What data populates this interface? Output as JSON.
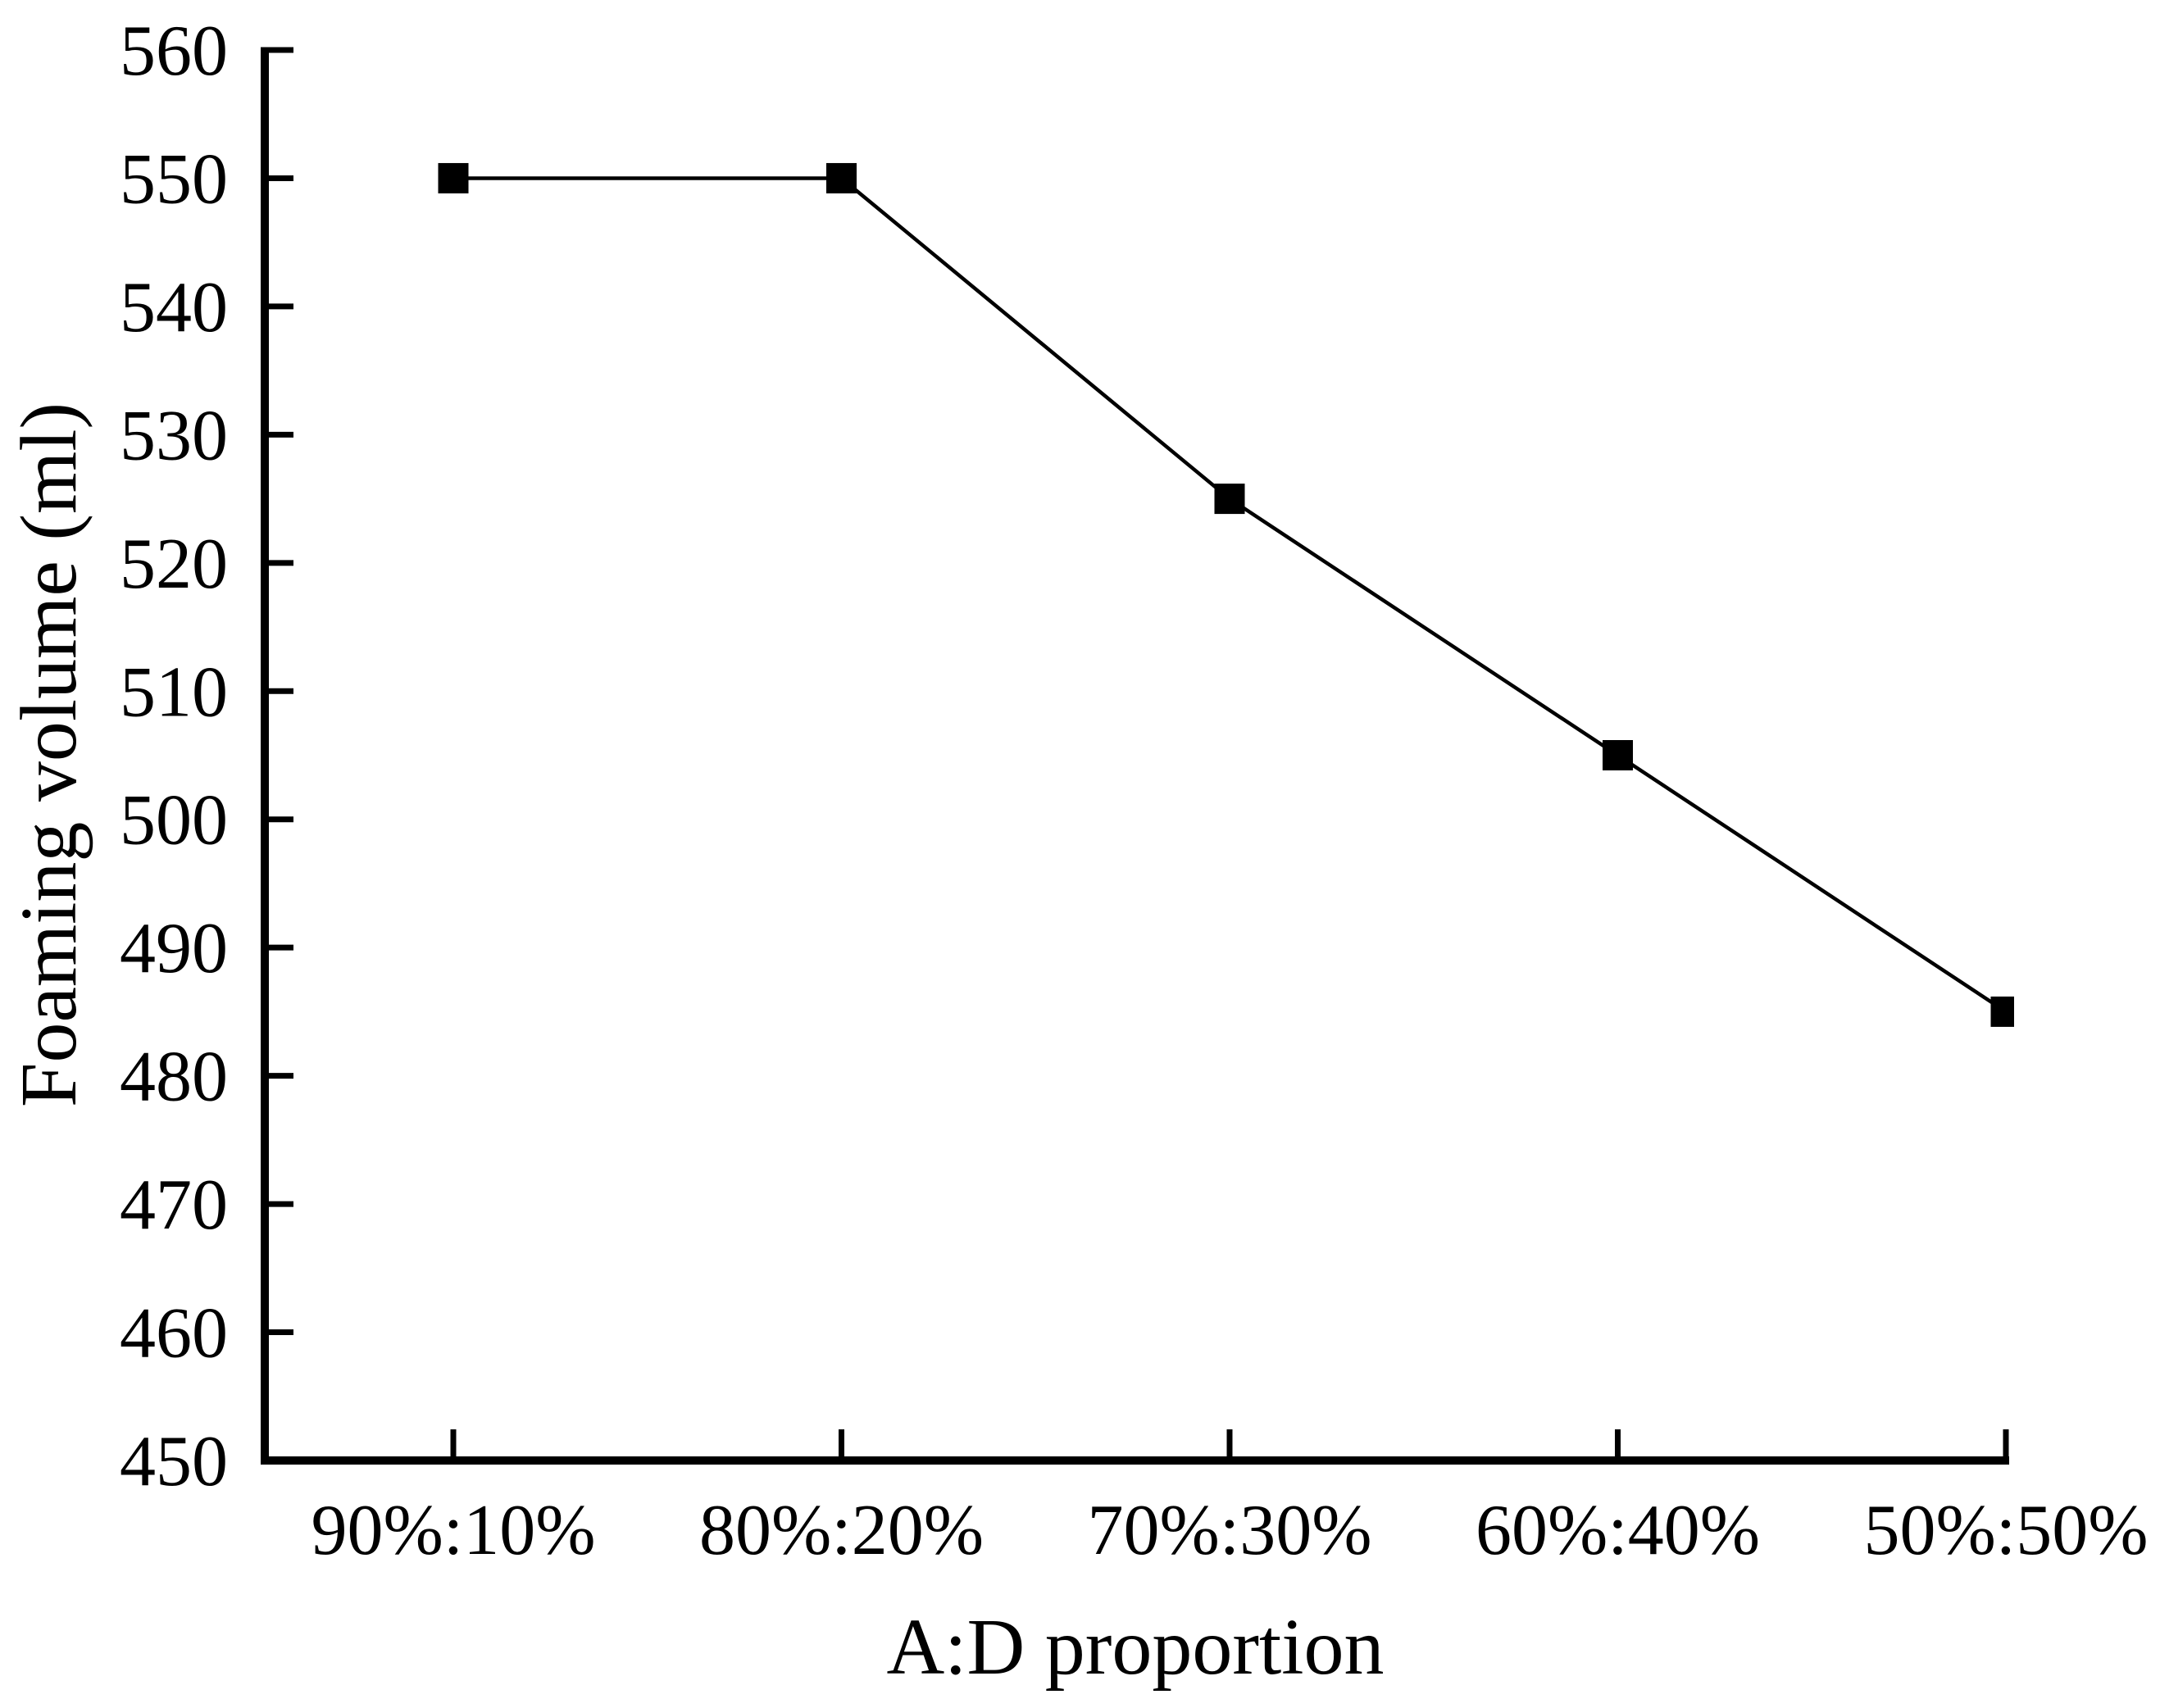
{
  "chart_data": {
    "type": "line",
    "title": "",
    "xlabel": "A:D proportion",
    "ylabel": "Foaming volume (ml)",
    "categories": [
      "90%:10%",
      "80%:20%",
      "70%:30%",
      "60%:40%",
      "50%:50%"
    ],
    "series": [
      {
        "name": "Foaming volume",
        "values": [
          550,
          550,
          525,
          505,
          485
        ]
      }
    ],
    "ylim": [
      450,
      560
    ],
    "yticks": [
      450,
      460,
      470,
      480,
      490,
      500,
      510,
      520,
      530,
      540,
      550,
      560
    ],
    "ytick_step": 10,
    "marker": "filled-square",
    "line_color": "#000000",
    "marker_color": "#000000",
    "axis_color": "#000000",
    "background": "#ffffff",
    "grid": false,
    "legend_position": "none"
  }
}
